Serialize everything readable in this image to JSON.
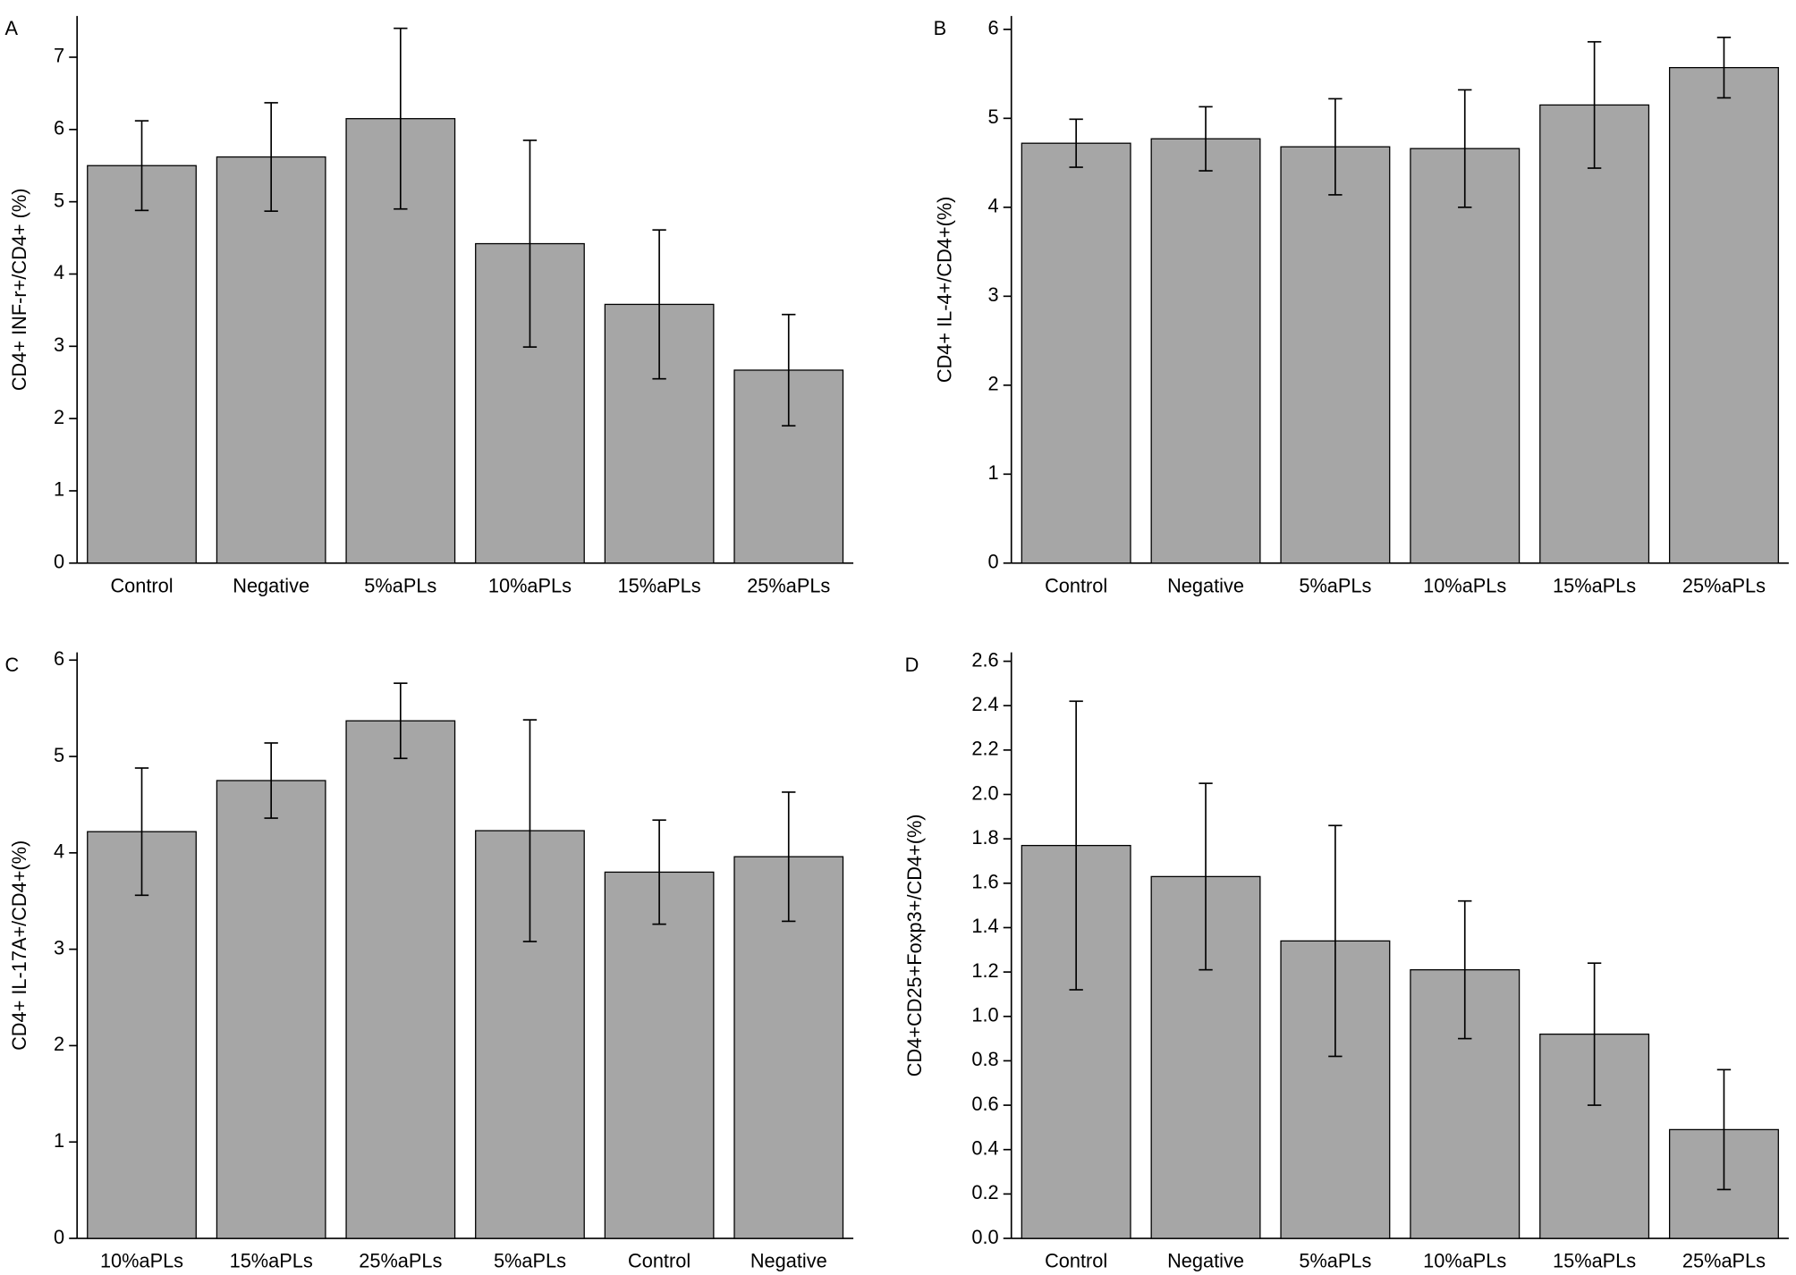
{
  "chart_data": [
    {
      "type": "bar",
      "panel": "A",
      "y_label": "CD4+ INF-r+/CD4+ (%)",
      "categories": [
        "Control",
        "Negative",
        "5%aPLs",
        "10%aPLs",
        "15%aPLs",
        "25%aPLs"
      ],
      "values": [
        5.5,
        5.62,
        6.15,
        4.42,
        3.58,
        2.67
      ],
      "errors": [
        0.62,
        0.75,
        1.25,
        1.43,
        1.03,
        0.77
      ],
      "color": "#a6a6a6",
      "ylim": [
        0,
        7.57
      ],
      "yticks": [
        0,
        1,
        2,
        3,
        4,
        5,
        6,
        7
      ]
    },
    {
      "type": "bar",
      "panel": "B",
      "y_label": "CD4+ IL-4+/CD4+(%)",
      "categories": [
        "Control",
        "Negative",
        "5%aPLs",
        "10%aPLs",
        "15%aPLs",
        "25%aPLs"
      ],
      "values": [
        4.72,
        4.77,
        4.68,
        4.66,
        5.15,
        5.57
      ],
      "errors": [
        0.27,
        0.36,
        0.54,
        0.66,
        0.71,
        0.34
      ],
      "color": "#a6a6a6",
      "ylim": [
        0,
        6.15
      ],
      "yticks": [
        0,
        1,
        2,
        3,
        4,
        5,
        6
      ]
    },
    {
      "type": "bar",
      "panel": "C",
      "y_label": "CD4+ IL-17A+/CD4+(%)",
      "categories": [
        "10%aPLs",
        "15%aPLs",
        "25%aPLs",
        "5%aPLs",
        "Control",
        "Negative"
      ],
      "values": [
        4.22,
        4.75,
        5.37,
        4.23,
        3.8,
        3.96
      ],
      "errors": [
        0.66,
        0.39,
        0.39,
        1.15,
        0.54,
        0.67
      ],
      "color": "#a6a6a6",
      "ylim": [
        0,
        6.08
      ],
      "yticks": [
        0,
        1,
        2,
        3,
        4,
        5,
        6
      ]
    },
    {
      "type": "bar",
      "panel": "D",
      "y_label": "CD4+CD25+Foxp3+/CD4+(%)",
      "categories": [
        "Control",
        "Negative",
        "5%aPLs",
        "10%aPLs",
        "15%aPLs",
        "25%aPLs"
      ],
      "values": [
        1.77,
        1.63,
        1.34,
        1.21,
        0.92,
        0.49
      ],
      "errors": [
        0.65,
        0.42,
        0.52,
        0.31,
        0.32,
        0.27
      ],
      "color": "#a6a6a6",
      "ylim": [
        0,
        2.64
      ],
      "yticks": [
        {
          "value": 0,
          "label": "0.0"
        },
        0.2,
        0.4,
        0.6,
        0.8,
        {
          "value": 1,
          "label": "1.0"
        },
        1.2,
        1.4,
        1.6,
        1.8,
        {
          "value": 2,
          "label": "2.0"
        },
        2.2,
        2.4,
        2.6
      ]
    }
  ]
}
